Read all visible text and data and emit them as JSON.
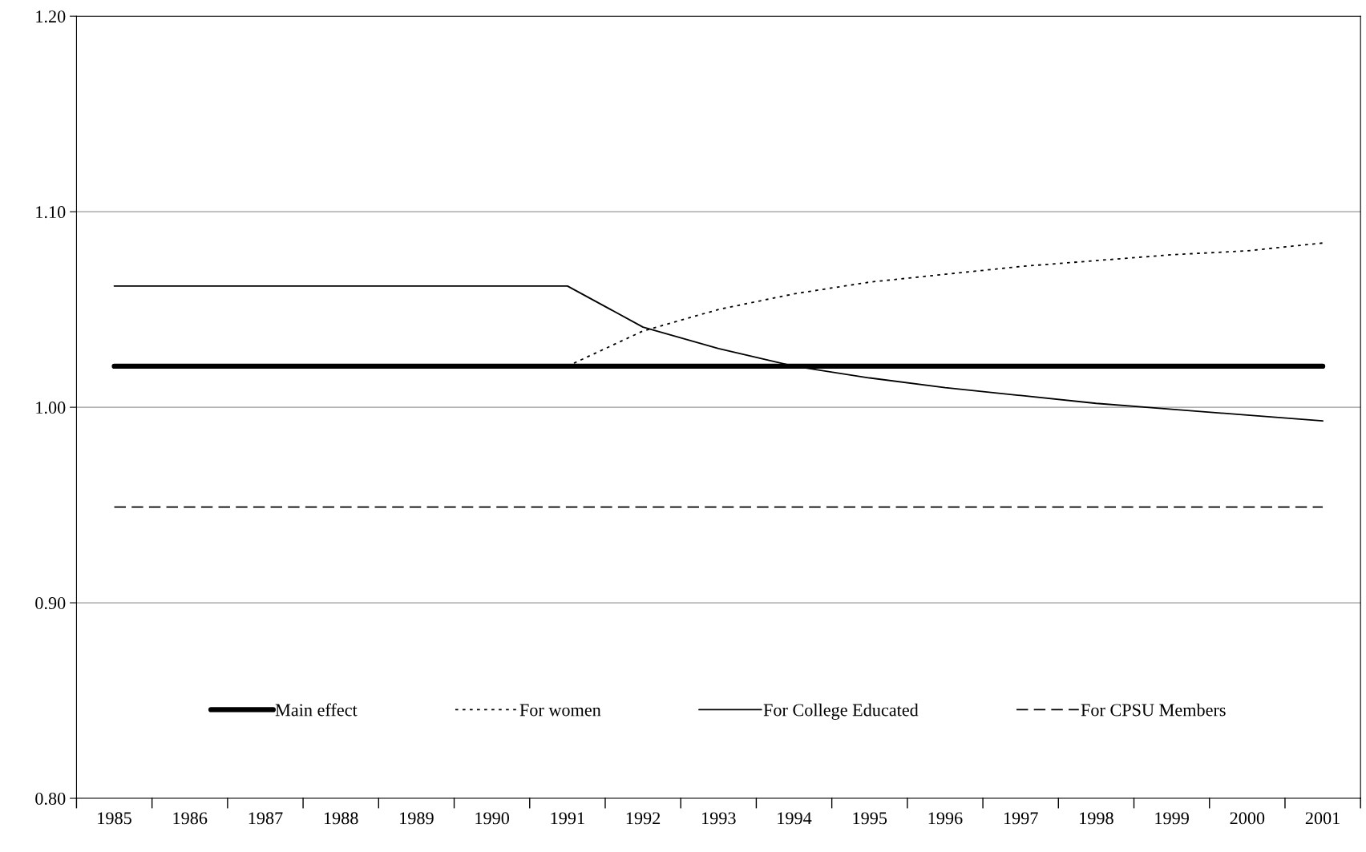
{
  "chart_data": {
    "type": "line",
    "categories": [
      "1985",
      "1986",
      "1987",
      "1988",
      "1989",
      "1990",
      "1991",
      "1992",
      "1993",
      "1994",
      "1995",
      "1996",
      "1997",
      "1998",
      "1999",
      "2000",
      "2001"
    ],
    "series": [
      {
        "name": "Main effect",
        "color": "#000000",
        "line_style": "solid",
        "values": [
          1.021,
          1.021,
          1.021,
          1.021,
          1.021,
          1.021,
          1.021,
          1.021,
          1.021,
          1.021,
          1.021,
          1.021,
          1.021,
          1.021,
          1.021,
          1.021,
          1.021
        ]
      },
      {
        "name": "For women",
        "color": "#000000",
        "line_style": "dotted",
        "values": [
          null,
          null,
          null,
          null,
          null,
          null,
          1.021,
          1.039,
          1.05,
          1.058,
          1.064,
          1.068,
          1.072,
          1.075,
          1.078,
          1.08,
          1.084
        ]
      },
      {
        "name": "For College Educated",
        "color": "#000000",
        "line_style": "solid",
        "values": [
          1.062,
          1.062,
          1.062,
          1.062,
          1.062,
          1.062,
          1.062,
          1.041,
          1.03,
          1.021,
          1.015,
          1.01,
          1.006,
          1.002,
          0.999,
          0.996,
          0.993
        ]
      },
      {
        "name": "For CPSU Members",
        "color": "#000000",
        "line_style": "dashed",
        "values": [
          0.949,
          0.949,
          0.949,
          0.949,
          0.949,
          0.949,
          0.949,
          0.949,
          0.949,
          0.949,
          0.949,
          0.949,
          0.949,
          0.949,
          0.949,
          0.949,
          0.949
        ]
      }
    ],
    "ylim": [
      0.8,
      1.2
    ],
    "yticks": [
      {
        "value": 0.8,
        "label": "0.80"
      },
      {
        "value": 0.9,
        "label": "0.90"
      },
      {
        "value": 1.0,
        "label": "1.00"
      },
      {
        "value": 1.1,
        "label": "1.10"
      },
      {
        "value": 1.2,
        "label": "1.20"
      }
    ],
    "grid": "y",
    "legend": "bottom",
    "marker": "none"
  }
}
